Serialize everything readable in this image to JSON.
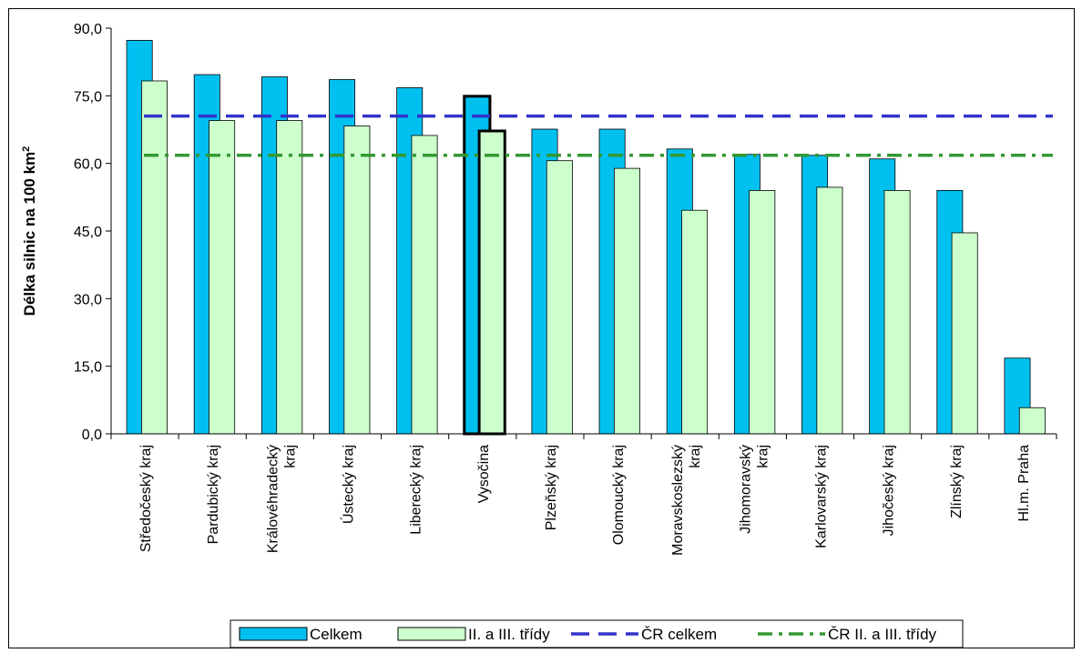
{
  "chart_data": {
    "type": "bar",
    "title": "",
    "ylabel": "Délka silnic na 100 km",
    "ylabel_superscript": "2",
    "xlabel": "",
    "ylim": [
      0,
      90
    ],
    "yticks": [
      "0,0",
      "15,0",
      "30,0",
      "45,0",
      "60,0",
      "75,0",
      "90,0"
    ],
    "ytick_values": [
      0,
      15,
      30,
      45,
      60,
      75,
      90
    ],
    "grid": false,
    "legend_position": "bottom",
    "categories": [
      [
        "Středočeský kraj"
      ],
      [
        "Pardubický kraj"
      ],
      [
        "Královéhradecký",
        "kraj"
      ],
      [
        "Ústecký kraj"
      ],
      [
        "Liberecký kraj"
      ],
      [
        "Vysočina"
      ],
      [
        "Plzeňský kraj"
      ],
      [
        "Olomoucký kraj"
      ],
      [
        "Moravskoslezský",
        "kraj"
      ],
      [
        "Jihomoravský",
        "kraj"
      ],
      [
        "Karlovarský kraj"
      ],
      [
        "Jihočeský kraj"
      ],
      [
        "Zlínský kraj"
      ],
      [
        "Hl.m. Praha"
      ]
    ],
    "highlighted_category_index": 5,
    "series": [
      {
        "name": "Celkem",
        "color": "#00c0f0",
        "values": [
          87.3,
          79.7,
          79.2,
          78.6,
          76.8,
          74.9,
          67.6,
          67.6,
          63.2,
          62.0,
          61.8,
          61.0,
          54.0,
          16.8
        ]
      },
      {
        "name": "II. a III. třídy",
        "color": "#ccffcc",
        "values": [
          78.3,
          69.5,
          69.5,
          68.3,
          66.2,
          67.2,
          60.6,
          58.9,
          49.6,
          54.0,
          54.7,
          54.0,
          44.6,
          5.8
        ]
      }
    ],
    "reference_lines": [
      {
        "name": "ČR celkem",
        "value": 70.5,
        "color": "#3333cc",
        "style": "dashed"
      },
      {
        "name": "ČR II. a III. třídy",
        "value": 61.8,
        "color": "#339933",
        "style": "dash-dot"
      }
    ]
  }
}
